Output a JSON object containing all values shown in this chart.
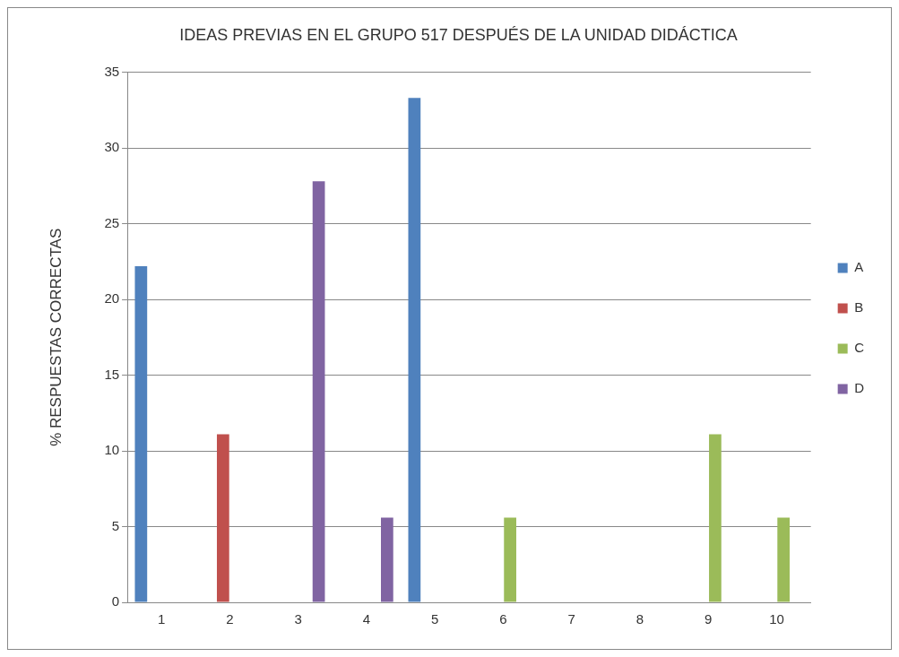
{
  "chart_data": {
    "type": "bar",
    "title": "IDEAS PREVIAS EN EL GRUPO 517 DESPUÉS DE LA UNIDAD DIDÁCTICA",
    "ylabel": "% RESPUESTAS CORRECTAS",
    "categories": [
      "1",
      "2",
      "3",
      "4",
      "5",
      "6",
      "7",
      "8",
      "9",
      "10"
    ],
    "series": [
      {
        "name": "A",
        "color": "#4f81bd",
        "values": [
          22.2,
          null,
          null,
          null,
          33.3,
          null,
          null,
          null,
          null,
          null
        ]
      },
      {
        "name": "B",
        "color": "#c0504d",
        "values": [
          null,
          11.1,
          null,
          null,
          null,
          null,
          null,
          null,
          null,
          null
        ]
      },
      {
        "name": "C",
        "color": "#9bbb59",
        "values": [
          null,
          null,
          null,
          null,
          null,
          5.6,
          null,
          null,
          11.1,
          5.6
        ]
      },
      {
        "name": "D",
        "color": "#8064a2",
        "values": [
          null,
          null,
          27.8,
          5.6,
          null,
          null,
          null,
          null,
          null,
          null
        ]
      }
    ],
    "ylim": [
      0,
      35
    ],
    "yticks": [
      0,
      5,
      10,
      15,
      20,
      25,
      30,
      35
    ],
    "grid": "y",
    "legend": "right"
  }
}
